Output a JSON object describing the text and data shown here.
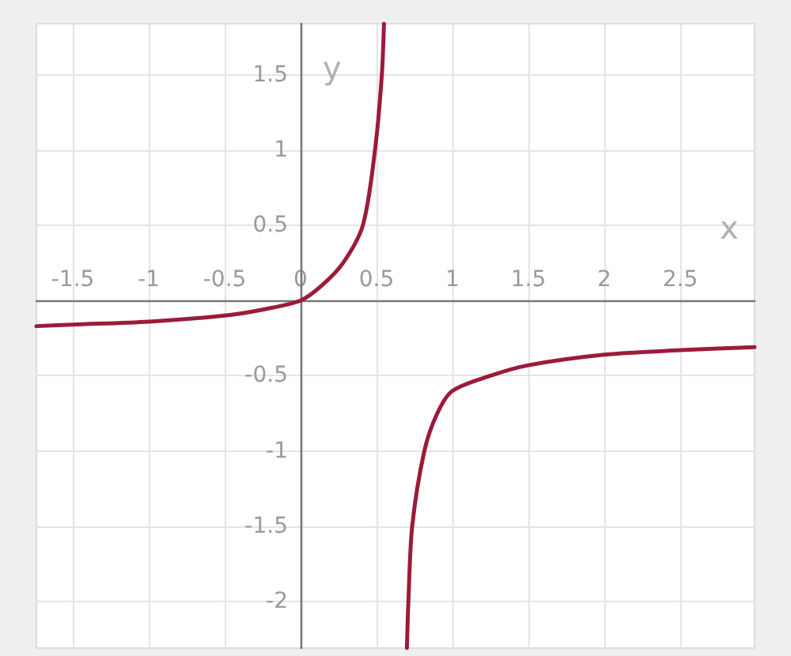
{
  "chart_data": {
    "type": "line",
    "xlabel": "x",
    "ylabel": "y",
    "xlim": [
      -1.74,
      2.99
    ],
    "ylim": [
      -2.31,
      1.84
    ],
    "xticks": [
      -1.5,
      -1,
      -0.5,
      0,
      0.5,
      1,
      1.5,
      2,
      2.5
    ],
    "yticks": [
      -2,
      -1.5,
      -1,
      -0.5,
      {
        "value": 0,
        "label": null
      },
      0.5,
      1,
      1.5
    ],
    "grid": true,
    "marker": "none",
    "line_style": "solid",
    "series": [
      {
        "color": "#9b1b3a",
        "x": [
          -1.74,
          -1.5,
          -1,
          -0.5,
          -0.25,
          0,
          0.14,
          0.28,
          0.41,
          0.49,
          0.535,
          0.549
        ],
        "values": [
          -0.17,
          -0.16,
          -0.14,
          -0.1,
          -0.06,
          0,
          0.1,
          0.25,
          0.5,
          1.0,
          1.5,
          1.84
        ]
      },
      {
        "color": "#9b1b3a",
        "x": [
          0.7,
          0.71,
          0.735,
          0.815,
          0.9,
          1,
          1.25,
          1.5,
          2,
          2.5,
          2.99
        ],
        "values": [
          -2.31,
          -2,
          -1.5,
          -1,
          -0.75,
          -0.6,
          -0.5,
          -0.43,
          -0.36,
          -0.33,
          -0.31
        ]
      }
    ]
  }
}
